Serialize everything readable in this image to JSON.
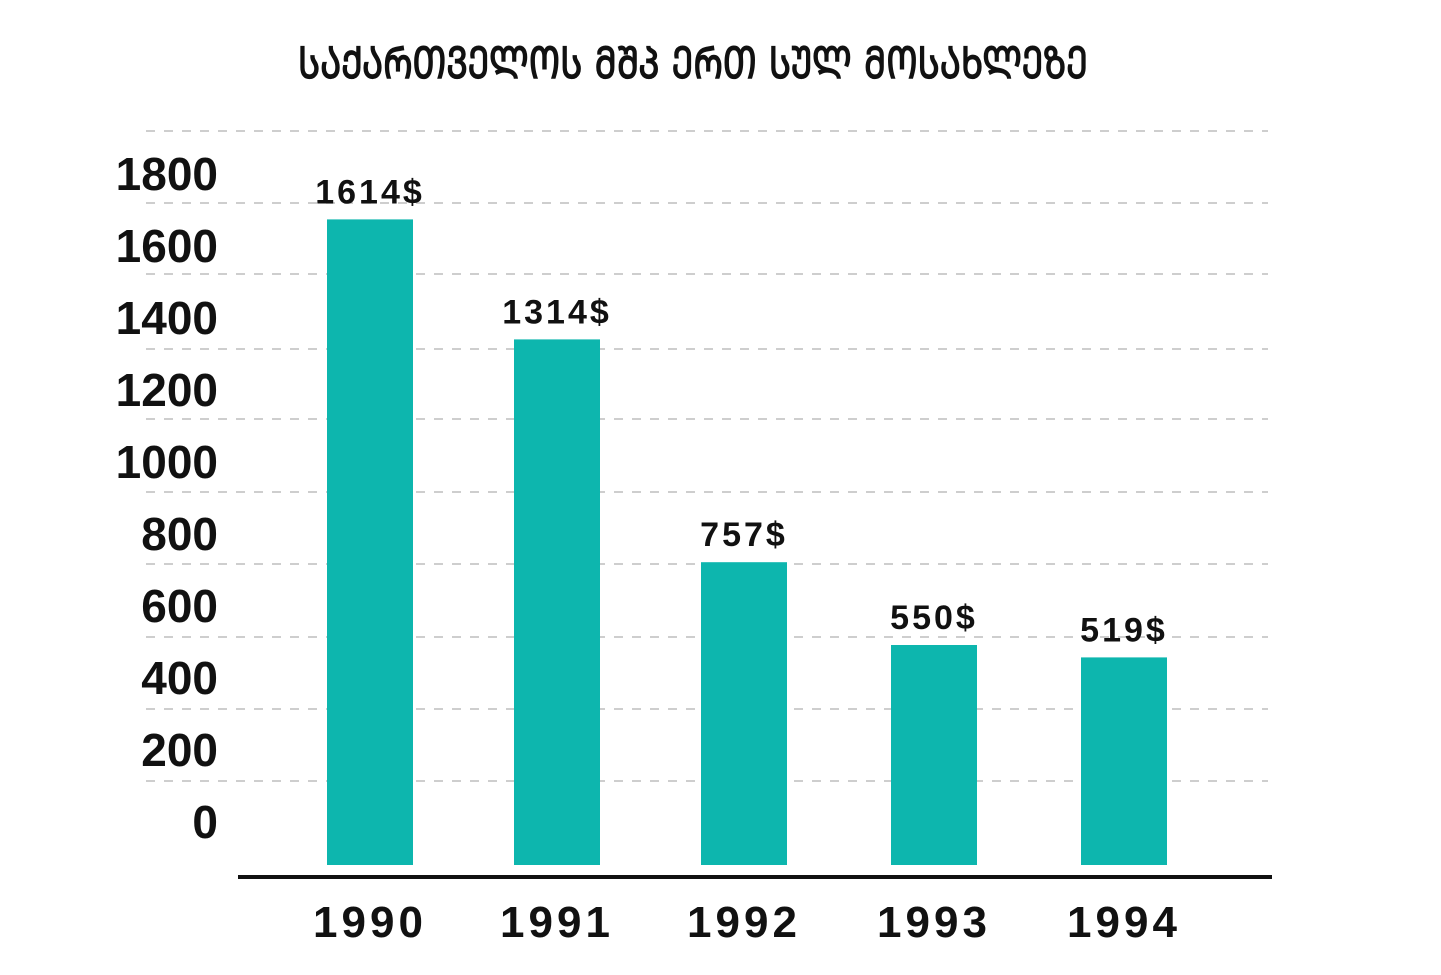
{
  "chart_data": {
    "type": "bar",
    "title": "ᲡᲐᲥᲐᲠᲗᲕᲔᲚᲝᲡ ᲛᲨᲞ ᲔᲠᲗ ᲡᲣᲚ ᲛᲝᲡᲐᲮᲚᲔᲖᲔ",
    "categories": [
      "1990",
      "1991",
      "1992",
      "1993",
      "1994"
    ],
    "values": [
      1614,
      1314,
      757,
      550,
      519
    ],
    "data_labels": [
      "1614$",
      "1314$",
      "757$",
      "550$",
      "519$"
    ],
    "y_ticks": [
      "0",
      "200",
      "400",
      "600",
      "800",
      "1000",
      "1200",
      "1400",
      "1600",
      "1800"
    ],
    "ylim": [
      0,
      1800
    ],
    "grid": true,
    "grid_style": "dashed",
    "bar_color": "#0db6ae"
  }
}
